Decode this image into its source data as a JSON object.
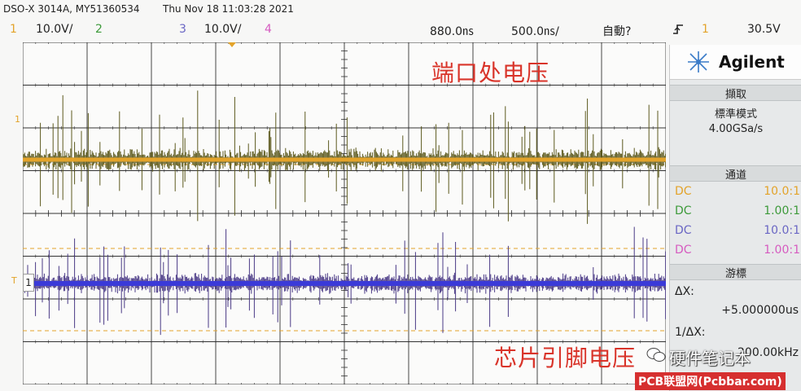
{
  "header": {
    "model_serial": "DSO-X 3014A, MY51360534",
    "datetime": "Thu Nov 18 11:03:28 2021"
  },
  "channels_bar": {
    "ch1_num": "1",
    "ch1_scale": "10.0V/",
    "ch2_num": "2",
    "ch3_num": "3",
    "ch3_scale": "10.0V/",
    "ch4_num": "4",
    "time_offset": "880.0㎱",
    "time_scale": "500.0㎱/",
    "trigger_mode": "自動?",
    "trigger_icon": "rising-edge-icon",
    "trigger_source": "1",
    "trigger_level": "30.5V"
  },
  "panel": {
    "brand": "Agilent",
    "acq_header": "擷取",
    "acq_mode": "標準模式",
    "sample_rate": "4.00GSa/s",
    "channels_header": "通道",
    "channels": [
      {
        "coupling": "DC",
        "scale": "10.0:1",
        "color": "#e3a32a"
      },
      {
        "coupling": "DC",
        "scale": "1.00:1",
        "color": "#3d9a3a"
      },
      {
        "coupling": "DC",
        "scale": "10.0:1",
        "color": "#6a66c4"
      },
      {
        "coupling": "DC",
        "scale": "1.00:1",
        "color": "#d65bc0"
      }
    ],
    "cursors_header": "游標",
    "dx_label": "ΔX:",
    "dx_value": "+5.000000us",
    "inv_dx_label": "1/ΔX:",
    "inv_dx_value": "200.00kHz"
  },
  "annotations": {
    "port_voltage": "端口处电压",
    "chip_pin_voltage": "芯片引脚电压"
  },
  "watermark": {
    "account": "硬件笔记本",
    "site": "PCB联盟网(Pcbbar.com)"
  },
  "colors": {
    "ch1": "#e3a32a",
    "ch1_noise": "#5d5a1e",
    "ch3": "#3b3ad8",
    "ch3_noise": "#4a3a86",
    "grid": "#222222",
    "annotation": "#d9342a"
  }
}
